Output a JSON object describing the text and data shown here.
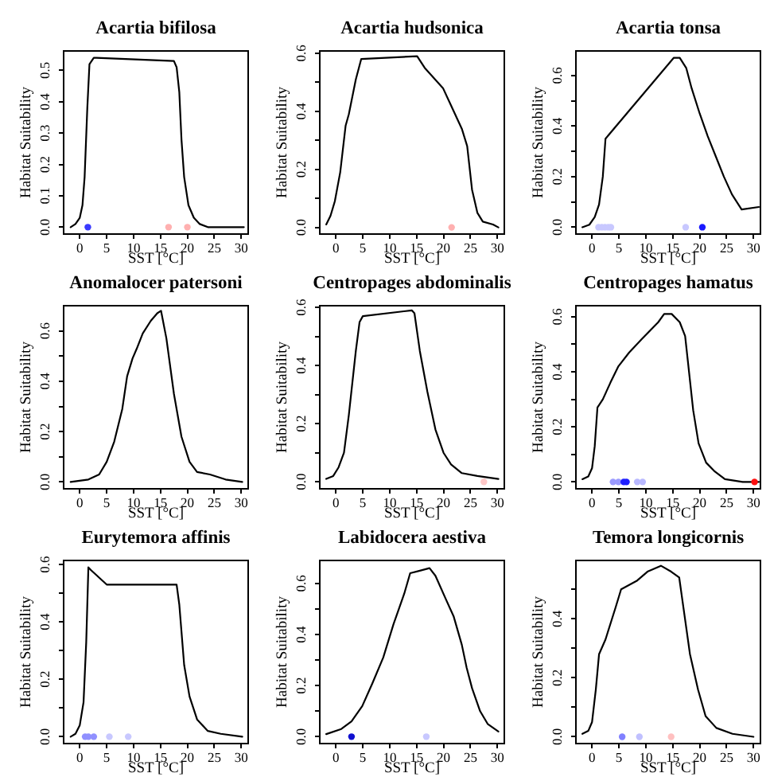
{
  "chart_data": [
    {
      "type": "line",
      "title": "Acartia bifilosa",
      "xlabel": "SST [°C]",
      "ylabel": "Habitat Suitability",
      "xlim": [
        -3,
        31.3
      ],
      "xticks": [
        0,
        5,
        10,
        15,
        20,
        25,
        30
      ],
      "ylim": [
        -0.022,
        0.562
      ],
      "yticks": [
        {
          "value": 0,
          "label": "0.0"
        },
        0.1,
        0.2,
        0.3,
        0.4,
        0.5
      ],
      "series": [
        {
          "type": "line",
          "color": "#000000",
          "x": [
            -1.7,
            -0.8,
            0,
            0.5,
            0.9,
            1.4,
            1.8,
            2.6,
            3.1,
            17.5,
            18,
            18.5,
            18.9,
            19.4,
            20.2,
            21.2,
            22.3,
            23.8,
            27,
            30.5
          ],
          "values": [
            0,
            0.01,
            0.03,
            0.07,
            0.16,
            0.38,
            0.52,
            0.54,
            0.54,
            0.53,
            0.51,
            0.43,
            0.28,
            0.16,
            0.07,
            0.03,
            0.01,
            0,
            0,
            0
          ]
        },
        {
          "type": "scatter",
          "marker": "circle",
          "x": [
            1.5,
            16.5,
            20
          ],
          "values": [
            0,
            0,
            0
          ],
          "colors": [
            "#3a3aff",
            "#ffb0b0",
            "#ffb0b0"
          ]
        }
      ]
    },
    {
      "type": "line",
      "title": "Acartia hudsonica",
      "xlabel": "SST [°C]",
      "ylabel": "Habitat Suitability",
      "xlim": [
        -3,
        31.3
      ],
      "xticks": [
        0,
        5,
        10,
        15,
        20,
        25,
        30
      ],
      "ylim": [
        -0.023,
        0.608
      ],
      "yticks": [
        {
          "value": 0,
          "label": "0.0"
        },
        {
          "value": 0.1,
          "label": null
        },
        0.2,
        {
          "value": 0.3,
          "label": null
        },
        0.4,
        {
          "value": 0.5,
          "label": null
        },
        0.6
      ],
      "series": [
        {
          "type": "line",
          "color": "#000000",
          "x": [
            -1.8,
            -1,
            -0.2,
            0.8,
            1.8,
            2.4,
            3.7,
            4.7,
            15.1,
            16.5,
            19.9,
            21.4,
            23.4,
            24.4,
            25.3,
            26.3,
            27.3,
            29.2,
            30.2
          ],
          "values": [
            0.01,
            0.04,
            0.09,
            0.19,
            0.35,
            0.39,
            0.51,
            0.58,
            0.59,
            0.55,
            0.48,
            0.42,
            0.34,
            0.28,
            0.13,
            0.05,
            0.02,
            0.01,
            0
          ]
        },
        {
          "type": "scatter",
          "marker": "circle",
          "x": [
            21.5
          ],
          "values": [
            0
          ],
          "colors": [
            "#ffb0b0"
          ]
        }
      ]
    },
    {
      "type": "line",
      "title": "Acartia tonsa",
      "xlabel": "SST [°C]",
      "ylabel": "Habitat Suitability",
      "xlim": [
        -3,
        31.3
      ],
      "xticks": [
        0,
        5,
        10,
        15,
        20,
        25,
        30
      ],
      "ylim": [
        -0.027,
        0.697
      ],
      "yticks": [
        {
          "value": 0,
          "label": "0.0"
        },
        {
          "value": 0.1,
          "label": null
        },
        0.2,
        {
          "value": 0.3,
          "label": null
        },
        0.4,
        {
          "value": 0.5,
          "label": null
        },
        0.6
      ],
      "series": [
        {
          "type": "line",
          "color": "#000000",
          "x": [
            -1.8,
            -0.5,
            0.5,
            1.3,
            2,
            2.5,
            15.2,
            16.3,
            17.5,
            18.5,
            20,
            21.5,
            23,
            24.5,
            26,
            27.8,
            31
          ],
          "values": [
            0,
            0.01,
            0.04,
            0.09,
            0.2,
            0.35,
            0.67,
            0.67,
            0.63,
            0.55,
            0.45,
            0.36,
            0.28,
            0.2,
            0.13,
            0.07,
            0.08
          ]
        },
        {
          "type": "scatter",
          "marker": "circle",
          "x": [
            1.2,
            1.8,
            2.4,
            3,
            3.5,
            17.4,
            20.5
          ],
          "values": [
            0,
            0,
            0,
            0,
            0,
            0,
            0
          ],
          "colors": [
            "#c8c8ff",
            "#c8c8ff",
            "#c8c8ff",
            "#c8c8ff",
            "#c8c8ff",
            "#c8c8ff",
            "#1a1aff"
          ]
        }
      ]
    },
    {
      "type": "line",
      "title": "Anomalocer patersoni",
      "xlabel": "SST [°C]",
      "ylabel": "Habitat Suitability",
      "xlim": [
        -3,
        31.3
      ],
      "xticks": [
        0,
        5,
        10,
        15,
        20,
        25,
        30
      ],
      "ylim": [
        -0.027,
        0.7
      ],
      "yticks": [
        {
          "value": 0,
          "label": "0.0"
        },
        {
          "value": 0.1,
          "label": null
        },
        0.2,
        {
          "value": 0.3,
          "label": null
        },
        0.4,
        {
          "value": 0.5,
          "label": null
        },
        0.6
      ],
      "series": [
        {
          "type": "line",
          "color": "#000000",
          "x": [
            -1.7,
            1.6,
            3.6,
            5,
            6.4,
            7.9,
            8.8,
            9.8,
            10.6,
            11.7,
            13.2,
            14.4,
            15.1,
            16.1,
            17.5,
            18.9,
            20.4,
            21.8,
            24.2,
            27.1,
            30.2
          ],
          "values": [
            0,
            0.01,
            0.03,
            0.08,
            0.16,
            0.29,
            0.42,
            0.49,
            0.53,
            0.59,
            0.64,
            0.67,
            0.68,
            0.57,
            0.35,
            0.18,
            0.08,
            0.04,
            0.03,
            0.01,
            0
          ]
        }
      ]
    },
    {
      "type": "line",
      "title": "Centropages abdominalis",
      "xlabel": "SST [°C]",
      "ylabel": "Habitat Suitability",
      "xlim": [
        -3,
        31.3
      ],
      "xticks": [
        0,
        5,
        10,
        15,
        20,
        25,
        30
      ],
      "ylim": [
        -0.024,
        0.606
      ],
      "yticks": [
        {
          "value": 0,
          "label": "0.0"
        },
        {
          "value": 0.1,
          "label": null
        },
        0.2,
        {
          "value": 0.3,
          "label": null
        },
        0.4,
        {
          "value": 0.5,
          "label": null
        },
        0.6
      ],
      "series": [
        {
          "type": "line",
          "color": "#000000",
          "x": [
            -1.8,
            -0.5,
            0.5,
            1.5,
            2.4,
            3.7,
            4.4,
            5,
            14.1,
            14.6,
            15.6,
            17,
            18.5,
            20,
            21.4,
            23.4,
            26.3,
            30.2
          ],
          "values": [
            0.01,
            0.02,
            0.05,
            0.1,
            0.23,
            0.45,
            0.55,
            0.57,
            0.59,
            0.58,
            0.45,
            0.31,
            0.18,
            0.1,
            0.06,
            0.03,
            0.02,
            0.01
          ]
        },
        {
          "type": "scatter",
          "marker": "circle",
          "x": [
            27.5
          ],
          "values": [
            0
          ],
          "colors": [
            "#ffc8c8"
          ]
        }
      ]
    },
    {
      "type": "line",
      "title": "Centropages hamatus",
      "xlabel": "SST [°C]",
      "ylabel": "Habitat Suitability",
      "xlim": [
        -3,
        31.3
      ],
      "xticks": [
        0,
        5,
        10,
        15,
        20,
        25,
        30
      ],
      "ylim": [
        -0.025,
        0.64
      ],
      "yticks": [
        {
          "value": 0,
          "label": "0.0"
        },
        {
          "value": 0.1,
          "label": null
        },
        0.2,
        {
          "value": 0.3,
          "label": null
        },
        0.4,
        {
          "value": 0.5,
          "label": null
        },
        0.6
      ],
      "series": [
        {
          "type": "line",
          "color": "#000000",
          "x": [
            -1.8,
            -0.7,
            0,
            0.5,
            1,
            2,
            3.4,
            4.9,
            6.9,
            9.3,
            12.3,
            13.4,
            14.8,
            16.3,
            17.3,
            17.8,
            18.8,
            19.8,
            21.2,
            22.7,
            24.7,
            28,
            31
          ],
          "values": [
            0.01,
            0.02,
            0.05,
            0.13,
            0.27,
            0.3,
            0.36,
            0.42,
            0.47,
            0.52,
            0.58,
            0.61,
            0.61,
            0.58,
            0.53,
            0.44,
            0.26,
            0.14,
            0.07,
            0.04,
            0.01,
            0,
            0
          ]
        },
        {
          "type": "scatter",
          "marker": "circle",
          "x": [
            3.9,
            4.9,
            5.9,
            6.4,
            8.4,
            9.4,
            30.2
          ],
          "values": [
            0,
            0,
            0,
            0,
            0,
            0,
            0
          ],
          "colors": [
            "#9a9aff",
            "#9a9aff",
            "#2020ff",
            "#2020ff",
            "#b8b8ff",
            "#b8b8ff",
            "#ff1010"
          ]
        }
      ]
    },
    {
      "type": "line",
      "title": "Eurytemora affinis",
      "xlabel": "SST [°C]",
      "ylabel": "Habitat Suitability",
      "xlim": [
        -3,
        31.3
      ],
      "xticks": [
        0,
        5,
        10,
        15,
        20,
        25,
        30
      ],
      "ylim": [
        -0.024,
        0.614
      ],
      "yticks": [
        {
          "value": 0,
          "label": "0.0"
        },
        {
          "value": 0.1,
          "label": null
        },
        0.2,
        {
          "value": 0.3,
          "label": null
        },
        0.4,
        {
          "value": 0.5,
          "label": null
        },
        0.6
      ],
      "series": [
        {
          "type": "line",
          "color": "#000000",
          "x": [
            -1.7,
            -0.8,
            0,
            0.7,
            1.2,
            1.6,
            2.1,
            5,
            18,
            18.5,
            19.4,
            20.4,
            21.8,
            23.8,
            26.2,
            30.2
          ],
          "values": [
            0,
            0.01,
            0.04,
            0.12,
            0.33,
            0.59,
            0.58,
            0.53,
            0.53,
            0.46,
            0.25,
            0.14,
            0.06,
            0.02,
            0.01,
            0
          ]
        },
        {
          "type": "scatter",
          "marker": "circle",
          "x": [
            1,
            1.6,
            2.6,
            5.5,
            9
          ],
          "values": [
            0,
            0,
            0,
            0,
            0
          ],
          "colors": [
            "#9090ff",
            "#9090ff",
            "#9090ff",
            "#c8c8ff",
            "#c8c8ff"
          ]
        }
      ]
    },
    {
      "type": "line",
      "title": "Labidocera aestiva",
      "xlabel": "SST [°C]",
      "ylabel": "Habitat Suitability",
      "xlim": [
        -3,
        31.3
      ],
      "xticks": [
        0,
        5,
        10,
        15,
        20,
        25,
        30
      ],
      "ylim": [
        -0.027,
        0.69
      ],
      "yticks": [
        {
          "value": 0,
          "label": "0.0"
        },
        {
          "value": 0.1,
          "label": null
        },
        0.2,
        {
          "value": 0.3,
          "label": null
        },
        0.4,
        {
          "value": 0.5,
          "label": null
        },
        0.6
      ],
      "series": [
        {
          "type": "line",
          "color": "#000000",
          "x": [
            -1.8,
            1,
            2.9,
            4.9,
            6.8,
            8.8,
            10.7,
            12.7,
            13.8,
            15.6,
            17.4,
            18.5,
            20.4,
            21.9,
            23.4,
            24.3,
            25.3,
            26.8,
            28.2,
            30.2
          ],
          "values": [
            0.01,
            0.03,
            0.06,
            0.12,
            0.21,
            0.31,
            0.44,
            0.56,
            0.64,
            0.65,
            0.66,
            0.63,
            0.54,
            0.47,
            0.36,
            0.27,
            0.19,
            0.1,
            0.05,
            0.02
          ]
        },
        {
          "type": "scatter",
          "marker": "circle",
          "x": [
            2.9,
            16.8
          ],
          "values": [
            0,
            0
          ],
          "colors": [
            "#1010d0",
            "#c8c8ff"
          ]
        }
      ]
    },
    {
      "type": "line",
      "title": "Temora longicornis",
      "xlabel": "SST [°C]",
      "ylabel": "Habitat Suitability",
      "xlim": [
        -3,
        31.3
      ],
      "xticks": [
        0,
        5,
        10,
        15,
        20,
        25,
        30
      ],
      "ylim": [
        -0.023,
        0.598
      ],
      "yticks": [
        {
          "value": 0,
          "label": "0.0"
        },
        {
          "value": 0.1,
          "label": null
        },
        0.2,
        {
          "value": 0.3,
          "label": null
        },
        0.4,
        {
          "value": 0.5,
          "label": null
        }
      ],
      "series": [
        {
          "type": "line",
          "color": "#000000",
          "x": [
            -1.8,
            -0.7,
            0,
            0.7,
            1.3,
            2.5,
            4.4,
            5.4,
            8.4,
            10.3,
            12.8,
            14.7,
            16.2,
            17.2,
            18.2,
            19.7,
            21.1,
            23.1,
            26.1,
            30
          ],
          "values": [
            0.01,
            0.02,
            0.05,
            0.16,
            0.28,
            0.33,
            0.44,
            0.5,
            0.53,
            0.56,
            0.58,
            0.56,
            0.54,
            0.41,
            0.28,
            0.16,
            0.07,
            0.03,
            0.01,
            0
          ]
        },
        {
          "type": "scatter",
          "marker": "circle",
          "x": [
            5.6,
            8.8,
            14.7
          ],
          "values": [
            0,
            0,
            0
          ],
          "colors": [
            "#8080ff",
            "#c0c0ff",
            "#ffc0c0"
          ]
        }
      ]
    }
  ]
}
